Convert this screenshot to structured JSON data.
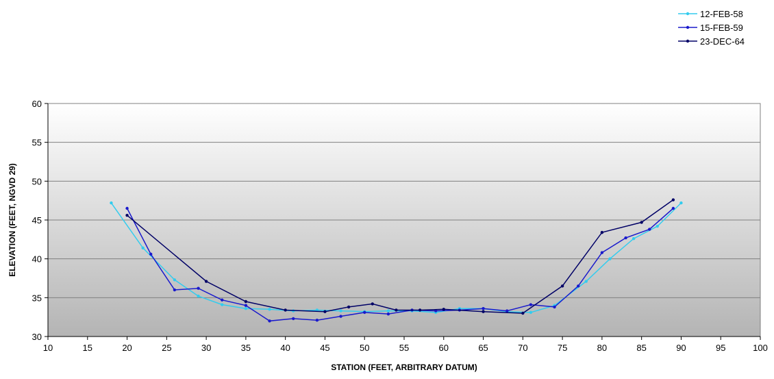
{
  "chart_data": {
    "type": "line",
    "title": "",
    "xlabel": "STATION (FEET, ARBITRARY DATUM)",
    "ylabel": "ELEVATION (FEET, NGVD 29)",
    "xlim": [
      10,
      100
    ],
    "ylim": [
      30,
      60
    ],
    "x_ticks": [
      10,
      15,
      20,
      25,
      30,
      35,
      40,
      45,
      50,
      55,
      60,
      65,
      70,
      75,
      80,
      85,
      90,
      95,
      100
    ],
    "y_ticks": [
      30,
      35,
      40,
      45,
      50,
      55,
      60
    ],
    "grid": "horizontal",
    "legend_position": "top-right",
    "background": "gradient-white-to-gray",
    "series": [
      {
        "name": "12-FEB-58",
        "color": "#33ccee",
        "points": [
          [
            18,
            47.2
          ],
          [
            22,
            41.4
          ],
          [
            26,
            37.3
          ],
          [
            29,
            35.2
          ],
          [
            32,
            34.1
          ],
          [
            35,
            33.6
          ],
          [
            38,
            33.5
          ],
          [
            41,
            33.3
          ],
          [
            44,
            33.4
          ],
          [
            47,
            33.3
          ],
          [
            50,
            33.2
          ],
          [
            53,
            33.3
          ],
          [
            56,
            33.3
          ],
          [
            59,
            33.1
          ],
          [
            62,
            33.6
          ],
          [
            65,
            33.6
          ],
          [
            68,
            33.2
          ],
          [
            71,
            33.1
          ],
          [
            74,
            34.0
          ],
          [
            78,
            37.1
          ],
          [
            81,
            40.0
          ],
          [
            84,
            42.6
          ],
          [
            87,
            44.2
          ],
          [
            90,
            47.2
          ]
        ]
      },
      {
        "name": "15-FEB-59",
        "color": "#1a1acc",
        "points": [
          [
            20,
            46.5
          ],
          [
            23,
            40.6
          ],
          [
            26,
            36.0
          ],
          [
            29,
            36.2
          ],
          [
            32,
            34.7
          ],
          [
            35,
            34.0
          ],
          [
            38,
            32.0
          ],
          [
            41,
            32.3
          ],
          [
            44,
            32.1
          ],
          [
            47,
            32.6
          ],
          [
            50,
            33.1
          ],
          [
            53,
            32.9
          ],
          [
            56,
            33.4
          ],
          [
            59,
            33.3
          ],
          [
            62,
            33.4
          ],
          [
            65,
            33.6
          ],
          [
            68,
            33.3
          ],
          [
            71,
            34.1
          ],
          [
            74,
            33.8
          ],
          [
            77,
            36.5
          ],
          [
            80,
            40.8
          ],
          [
            83,
            42.7
          ],
          [
            86,
            43.8
          ],
          [
            89,
            46.5
          ]
        ]
      },
      {
        "name": "23-DEC-64",
        "color": "#000066",
        "points": [
          [
            20,
            45.6
          ],
          [
            30,
            37.1
          ],
          [
            35,
            34.5
          ],
          [
            40,
            33.4
          ],
          [
            45,
            33.2
          ],
          [
            48,
            33.8
          ],
          [
            51,
            34.2
          ],
          [
            54,
            33.4
          ],
          [
            57,
            33.4
          ],
          [
            60,
            33.5
          ],
          [
            65,
            33.2
          ],
          [
            70,
            33.0
          ],
          [
            75,
            36.5
          ],
          [
            80,
            43.4
          ],
          [
            85,
            44.7
          ],
          [
            89,
            47.6
          ]
        ]
      }
    ]
  }
}
